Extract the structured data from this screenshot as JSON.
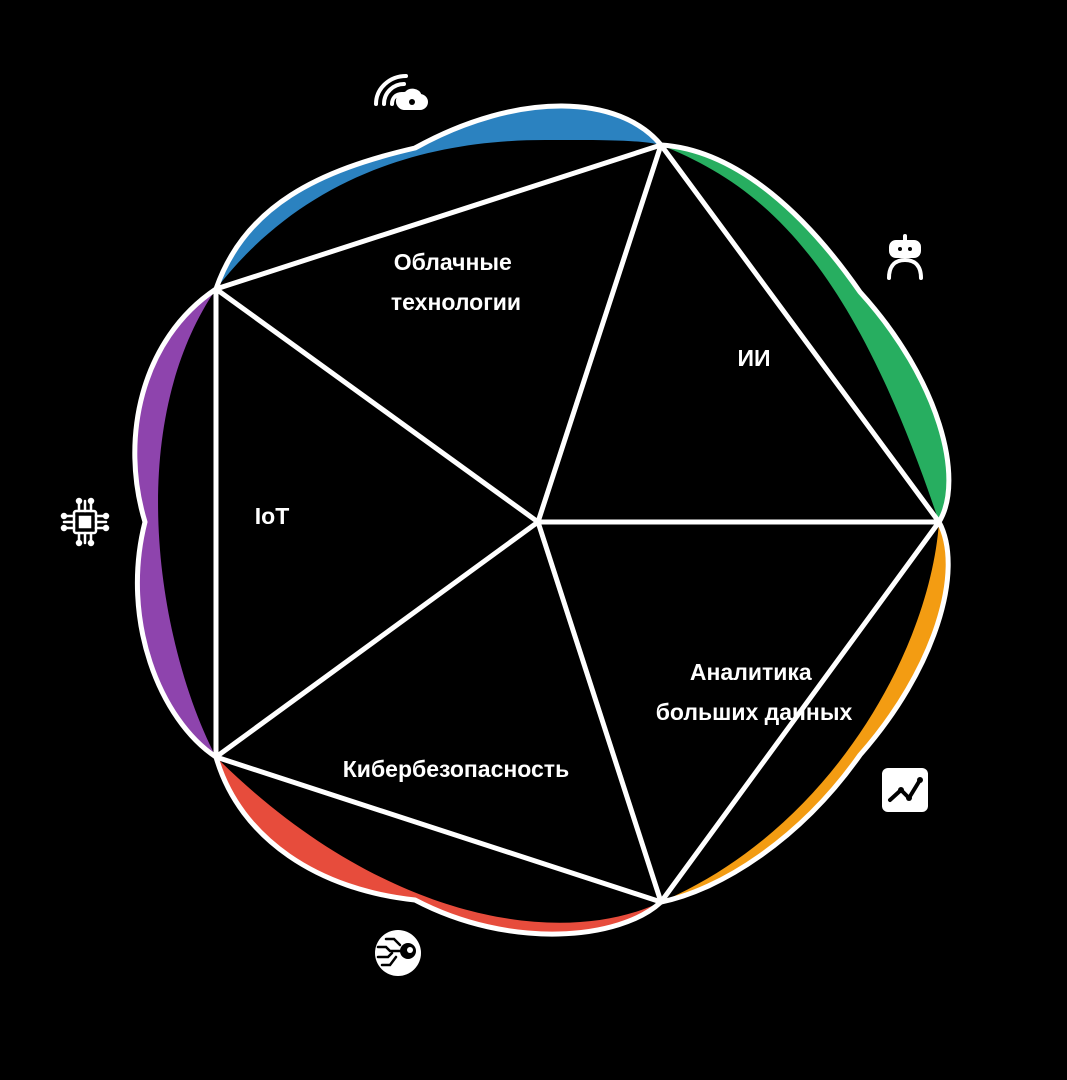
{
  "segments": [
    {
      "id": "cloud",
      "label_lines": [
        "Облачные",
        "технологии"
      ],
      "color": "#2b82c0",
      "icon": "cloud-wifi-icon"
    },
    {
      "id": "ai",
      "label_lines": [
        "ИИ"
      ],
      "color": "#27ae60",
      "icon": "robot-icon"
    },
    {
      "id": "bigdata",
      "label_lines": [
        "Аналитика",
        "больших данных"
      ],
      "color": "#f39c12",
      "icon": "line-chart-icon"
    },
    {
      "id": "security",
      "label_lines": [
        "Кибербезопасность"
      ],
      "color": "#e74c3c",
      "icon": "cyber-eye-icon"
    },
    {
      "id": "iot",
      "label_lines": [
        "IoT"
      ],
      "color": "#8e44ad",
      "icon": "chip-icon"
    }
  ],
  "colors": {
    "background": "#000000",
    "outline": "#ffffff"
  }
}
